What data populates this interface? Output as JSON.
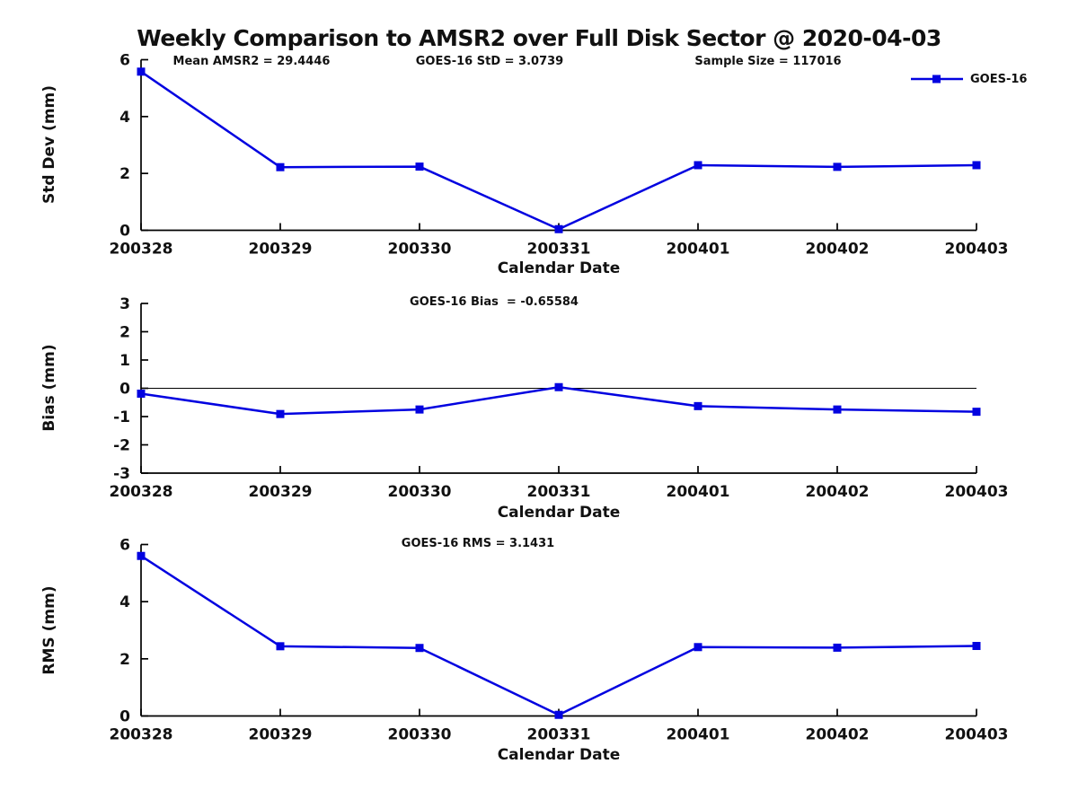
{
  "page": {
    "title": "Weekly Comparison to AMSR2 over Full Disk Sector @ 2020-04-03",
    "colors": {
      "line": "#0202e0",
      "axis": "#000000",
      "text": "#111111",
      "background": "#ffffff"
    }
  },
  "chart_data": [
    {
      "id": "std-dev",
      "type": "line",
      "ylabel": "Std Dev (mm)",
      "xlabel": "Calendar Date",
      "categories": [
        "200328",
        "200329",
        "200330",
        "200331",
        "200401",
        "200402",
        "200403"
      ],
      "series": [
        {
          "name": "GOES-16",
          "values": [
            5.58,
            2.22,
            2.24,
            0.04,
            2.29,
            2.23,
            2.29
          ]
        }
      ],
      "ylim": [
        0,
        6
      ],
      "yticks": [
        0,
        2,
        4,
        6
      ],
      "annotations": [
        "Mean AMSR2 = 29.4446",
        "GOES-16 StD = 3.0739",
        "Sample Size = 117016"
      ],
      "legend": {
        "label": "GOES-16",
        "position": "top-right"
      },
      "grid": false,
      "zero_line": false
    },
    {
      "id": "bias",
      "type": "line",
      "ylabel": "Bias (mm)",
      "xlabel": "Calendar Date",
      "categories": [
        "200328",
        "200329",
        "200330",
        "200331",
        "200401",
        "200402",
        "200403"
      ],
      "series": [
        {
          "name": "GOES-16",
          "values": [
            -0.19,
            -0.91,
            -0.75,
            0.04,
            -0.63,
            -0.75,
            -0.83
          ]
        }
      ],
      "ylim": [
        -3,
        3
      ],
      "yticks": [
        -3,
        -2,
        -1,
        0,
        1,
        2,
        3
      ],
      "annotations": [
        "GOES-16 Bias  = -0.65584"
      ],
      "grid": false,
      "zero_line": true
    },
    {
      "id": "rms",
      "type": "line",
      "ylabel": "RMS (mm)",
      "xlabel": "Calendar Date",
      "categories": [
        "200328",
        "200329",
        "200330",
        "200331",
        "200401",
        "200402",
        "200403"
      ],
      "series": [
        {
          "name": "GOES-16",
          "values": [
            5.6,
            2.44,
            2.38,
            0.04,
            2.41,
            2.39,
            2.45
          ]
        }
      ],
      "ylim": [
        0,
        6
      ],
      "yticks": [
        0,
        2,
        4,
        6
      ],
      "annotations": [
        "GOES-16 RMS = 3.1431"
      ],
      "grid": false,
      "zero_line": false
    }
  ]
}
